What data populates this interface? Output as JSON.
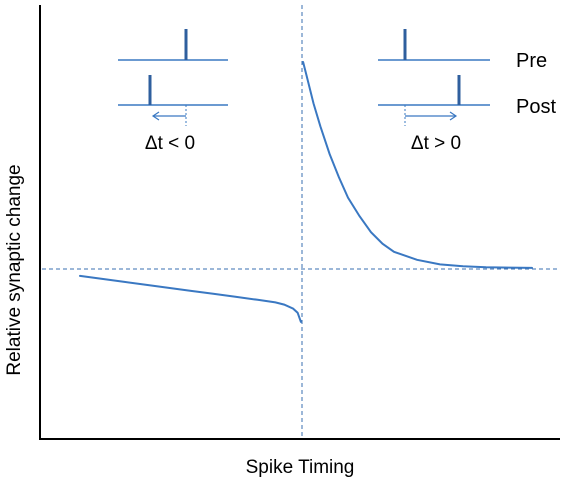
{
  "chart_data": {
    "type": "line",
    "title": "",
    "xlabel": "Spike Timing",
    "ylabel": "Relative synaptic change",
    "grid": false,
    "reference_lines": {
      "x": 0,
      "y": 0
    },
    "x_range": [
      -1,
      1
    ],
    "y_range": [
      -0.8,
      1.0
    ],
    "ticks_shown": false,
    "series": [
      {
        "segment": "negative",
        "x": [
          -1.0,
          -0.9,
          -0.8,
          -0.7,
          -0.6,
          -0.5,
          -0.4,
          -0.3,
          -0.2,
          -0.12,
          -0.08,
          -0.04,
          -0.02,
          -0.005
        ],
        "y": [
          -0.03,
          -0.043,
          -0.056,
          -0.069,
          -0.082,
          -0.095,
          -0.108,
          -0.121,
          -0.134,
          -0.145,
          -0.155,
          -0.172,
          -0.19,
          -0.23
        ]
      },
      {
        "segment": "positive",
        "x": [
          0.005,
          0.02,
          0.05,
          0.08,
          0.12,
          0.16,
          0.2,
          0.25,
          0.3,
          0.35,
          0.4,
          0.5,
          0.6,
          0.7,
          0.8,
          0.9,
          1.0
        ],
        "y": [
          0.9,
          0.84,
          0.72,
          0.62,
          0.5,
          0.4,
          0.31,
          0.23,
          0.16,
          0.11,
          0.075,
          0.04,
          0.02,
          0.012,
          0.008,
          0.006,
          0.005
        ]
      }
    ],
    "inset_labels": {
      "pre": "Pre",
      "post": "Post",
      "dt_negative": "Δt < 0",
      "dt_positive": "Δt > 0"
    }
  }
}
